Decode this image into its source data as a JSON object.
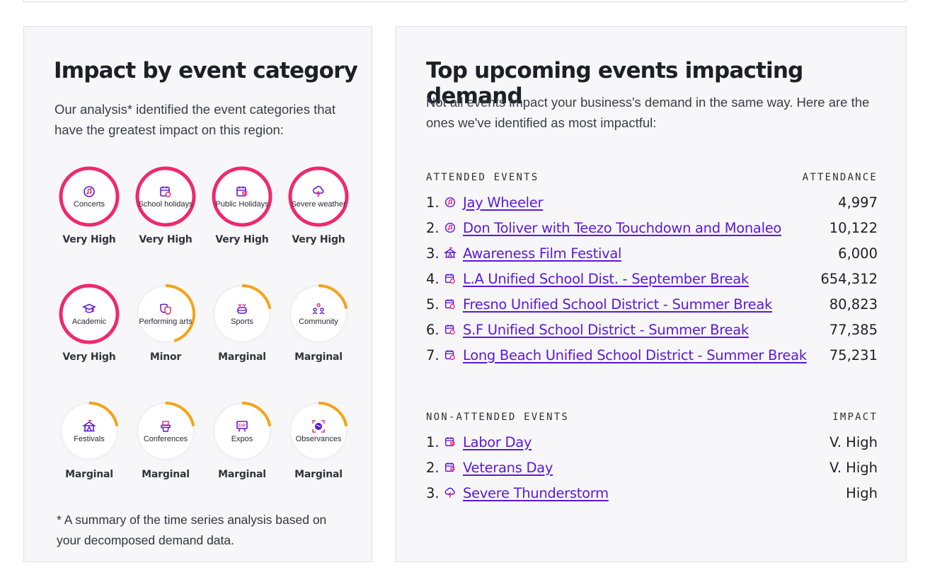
{
  "colors": {
    "magenta": "#f0286e",
    "orange": "#f5a316",
    "purple": "#5b18d9",
    "card_bg": "#f7f7fa"
  },
  "left": {
    "title": "Impact by event category",
    "intro": "Our analysis* identified the event categories that have the greatest impact on this region:",
    "categories": [
      {
        "label": "Concerts",
        "level": "Very High",
        "impact": "very-high",
        "icon": "music-icon"
      },
      {
        "label": "School holidays",
        "level": "Very High",
        "impact": "very-high",
        "icon": "school-calendar-icon"
      },
      {
        "label": "Public Holidays",
        "level": "Very High",
        "impact": "very-high",
        "icon": "holiday-calendar-icon"
      },
      {
        "label": "Severe weather",
        "level": "Very High",
        "impact": "very-high",
        "icon": "storm-icon"
      },
      {
        "label": "Academic",
        "level": "Very High",
        "impact": "very-high",
        "icon": "graduation-cap-icon"
      },
      {
        "label": "Performing arts",
        "level": "Minor",
        "impact": "minor",
        "icon": "theater-masks-icon"
      },
      {
        "label": "Sports",
        "level": "Marginal",
        "impact": "marginal",
        "icon": "sports-icon"
      },
      {
        "label": "Community",
        "level": "Marginal",
        "impact": "marginal",
        "icon": "community-icon"
      },
      {
        "label": "Festivals",
        "level": "Marginal",
        "impact": "marginal",
        "icon": "festival-tent-icon"
      },
      {
        "label": "Conferences",
        "level": "Marginal",
        "impact": "marginal",
        "icon": "podium-icon"
      },
      {
        "label": "Expos",
        "level": "Marginal",
        "impact": "marginal",
        "icon": "expo-icon"
      },
      {
        "label": "Observances",
        "level": "Marginal",
        "impact": "marginal",
        "icon": "globe-icon"
      }
    ],
    "footnote": "* A summary of the time series analysis based on your decomposed demand data."
  },
  "right": {
    "title": "Top upcoming events impacting demand",
    "intro": "Not all events impact your business's demand in the same way. Here are the ones we've identified as most impactful:",
    "attended": {
      "heading": "ATTENDED EVENTS",
      "value_heading": "ATTENDANCE",
      "items": [
        {
          "num": "1.",
          "name": "Jay Wheeler",
          "value": "4,997",
          "icon": "music-icon"
        },
        {
          "num": "2.",
          "name": "Don Toliver with Teezo Touchdown and Monaleo",
          "value": "10,122",
          "icon": "music-icon"
        },
        {
          "num": "3.",
          "name": "Awareness Film Festival",
          "value": "6,000",
          "icon": "festival-tent-icon"
        },
        {
          "num": "4.",
          "name": "L.A Unified School Dist. - September Break",
          "value": "654,312",
          "icon": "school-calendar-icon"
        },
        {
          "num": "5.",
          "name": "Fresno Unified School District - Summer Break",
          "value": "80,823",
          "icon": "school-calendar-icon"
        },
        {
          "num": "6.",
          "name": "S.F Unified School District - Summer Break",
          "value": "77,385",
          "icon": "school-calendar-icon"
        },
        {
          "num": "7.",
          "name": "Long Beach Unified School District - Summer Break",
          "value": "75,231",
          "icon": "school-calendar-icon"
        }
      ]
    },
    "non_attended": {
      "heading": "NON-ATTENDED EVENTS",
      "value_heading": "IMPACT",
      "items": [
        {
          "num": "1.",
          "name": "Labor Day",
          "value": "V. High",
          "icon": "holiday-calendar-icon"
        },
        {
          "num": "2.",
          "name": "Veterans Day",
          "value": "V. High",
          "icon": "holiday-calendar-icon"
        },
        {
          "num": "3.",
          "name": "Severe Thunderstorm",
          "value": "High",
          "icon": "storm-icon"
        }
      ]
    }
  }
}
